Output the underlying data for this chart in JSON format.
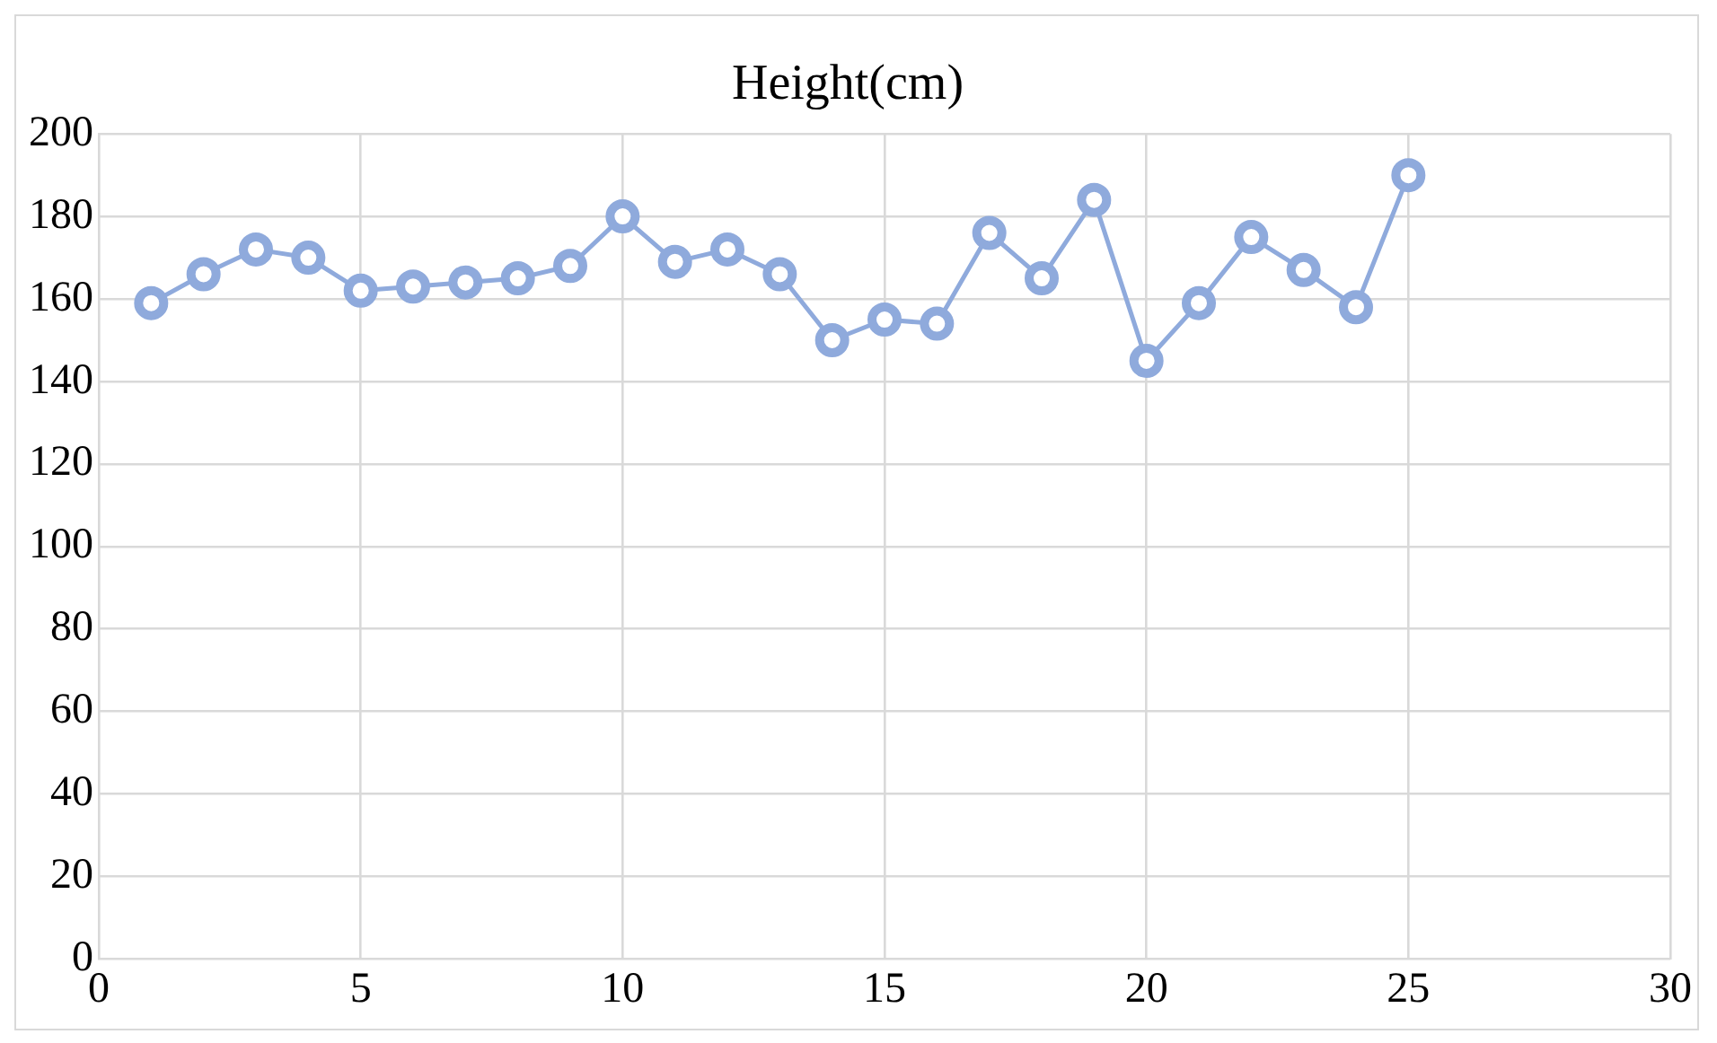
{
  "chart_data": {
    "type": "scatter",
    "title": "Height(cm)",
    "x": [
      1,
      2,
      3,
      4,
      5,
      6,
      7,
      8,
      9,
      10,
      11,
      12,
      13,
      14,
      15,
      16,
      17,
      18,
      19,
      20,
      21,
      22,
      23,
      24,
      25
    ],
    "series": [
      {
        "type": "line",
        "color": "#8faadc",
        "values": [
          159,
          166,
          172,
          170,
          162,
          163,
          164,
          165,
          168,
          180,
          169,
          172,
          166,
          150,
          155,
          154,
          176,
          165,
          184,
          145,
          159,
          175,
          167,
          158,
          190
        ]
      }
    ],
    "xlim": [
      0,
      30
    ],
    "xticks": [
      0,
      5,
      10,
      15,
      20,
      25,
      30
    ],
    "ylim": [
      0,
      200
    ],
    "yticks": [
      0,
      20,
      40,
      60,
      80,
      100,
      120,
      140,
      160,
      180,
      200
    ],
    "grid": true,
    "legend": false,
    "marker": "circle",
    "line_style": "solid"
  }
}
